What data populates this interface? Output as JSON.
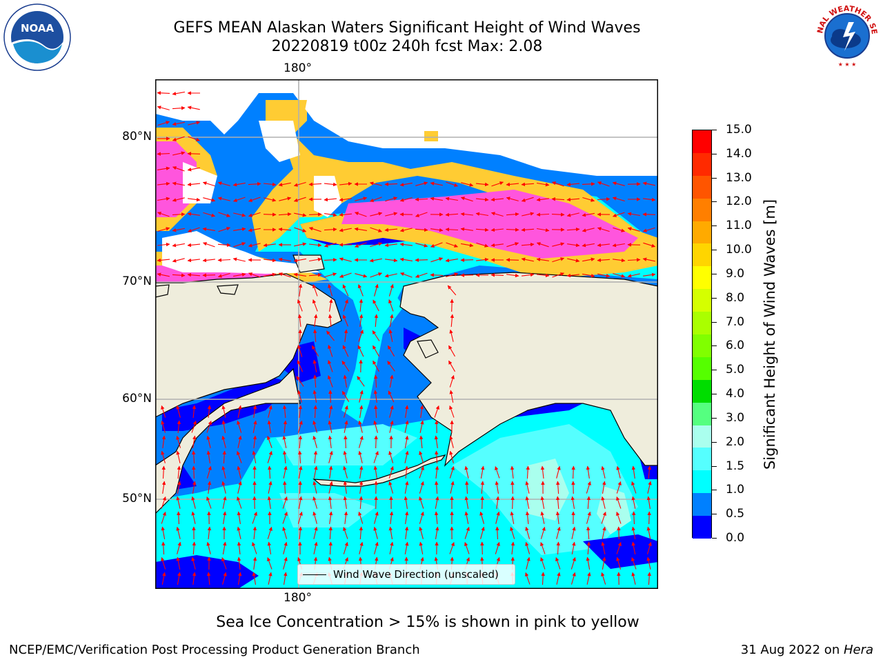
{
  "title": {
    "line1": "GEFS MEAN Alaskan Waters Significant Height of Wind Waves",
    "line2": "20220819 t00z 240h fcst   Max: 2.08"
  },
  "logos": {
    "left": "NOAA",
    "right": "NATIONAL WEATHER SERVICE"
  },
  "map": {
    "lon_labels": [
      "180°",
      "180°"
    ],
    "lat_labels": [
      "80°N",
      "70°N",
      "60°N",
      "50°N"
    ],
    "legend_label": "Wind Wave Direction (unscaled)",
    "colors": {
      "land": "#efeddc",
      "ice_white": "#ffffff",
      "coast": "#000000",
      "arrow": "#ff0000",
      "grid": "#b0b0b0"
    }
  },
  "colorbar": {
    "title": "Significant Height of Wind Waves [m]",
    "ticks": [
      "15.0",
      "14.0",
      "13.0",
      "12.0",
      "11.0",
      "10.0",
      "9.0",
      "8.0",
      "7.0",
      "6.0",
      "5.0",
      "4.0",
      "3.0",
      "2.0",
      "1.5",
      "1.0",
      "0.5",
      "0.0"
    ],
    "colors_top_to_bottom": [
      "#ff0000",
      "#ff2a00",
      "#ff5500",
      "#ff7f00",
      "#ffaa00",
      "#ffd500",
      "#ffff00",
      "#d5ff00",
      "#aaff00",
      "#80ff00",
      "#55ff00",
      "#00dd00",
      "#55ff80",
      "#aaffee",
      "#55ffff",
      "#00ffff",
      "#0080ff",
      "#0000ff"
    ]
  },
  "subtitle": "Sea Ice Concentration > 15% is shown in pink to yellow",
  "footer": {
    "left": "NCEP/EMC/Verification Post Processing Product Generation Branch",
    "right_date": "31 Aug 2022 on ",
    "right_machine": "Hera"
  }
}
